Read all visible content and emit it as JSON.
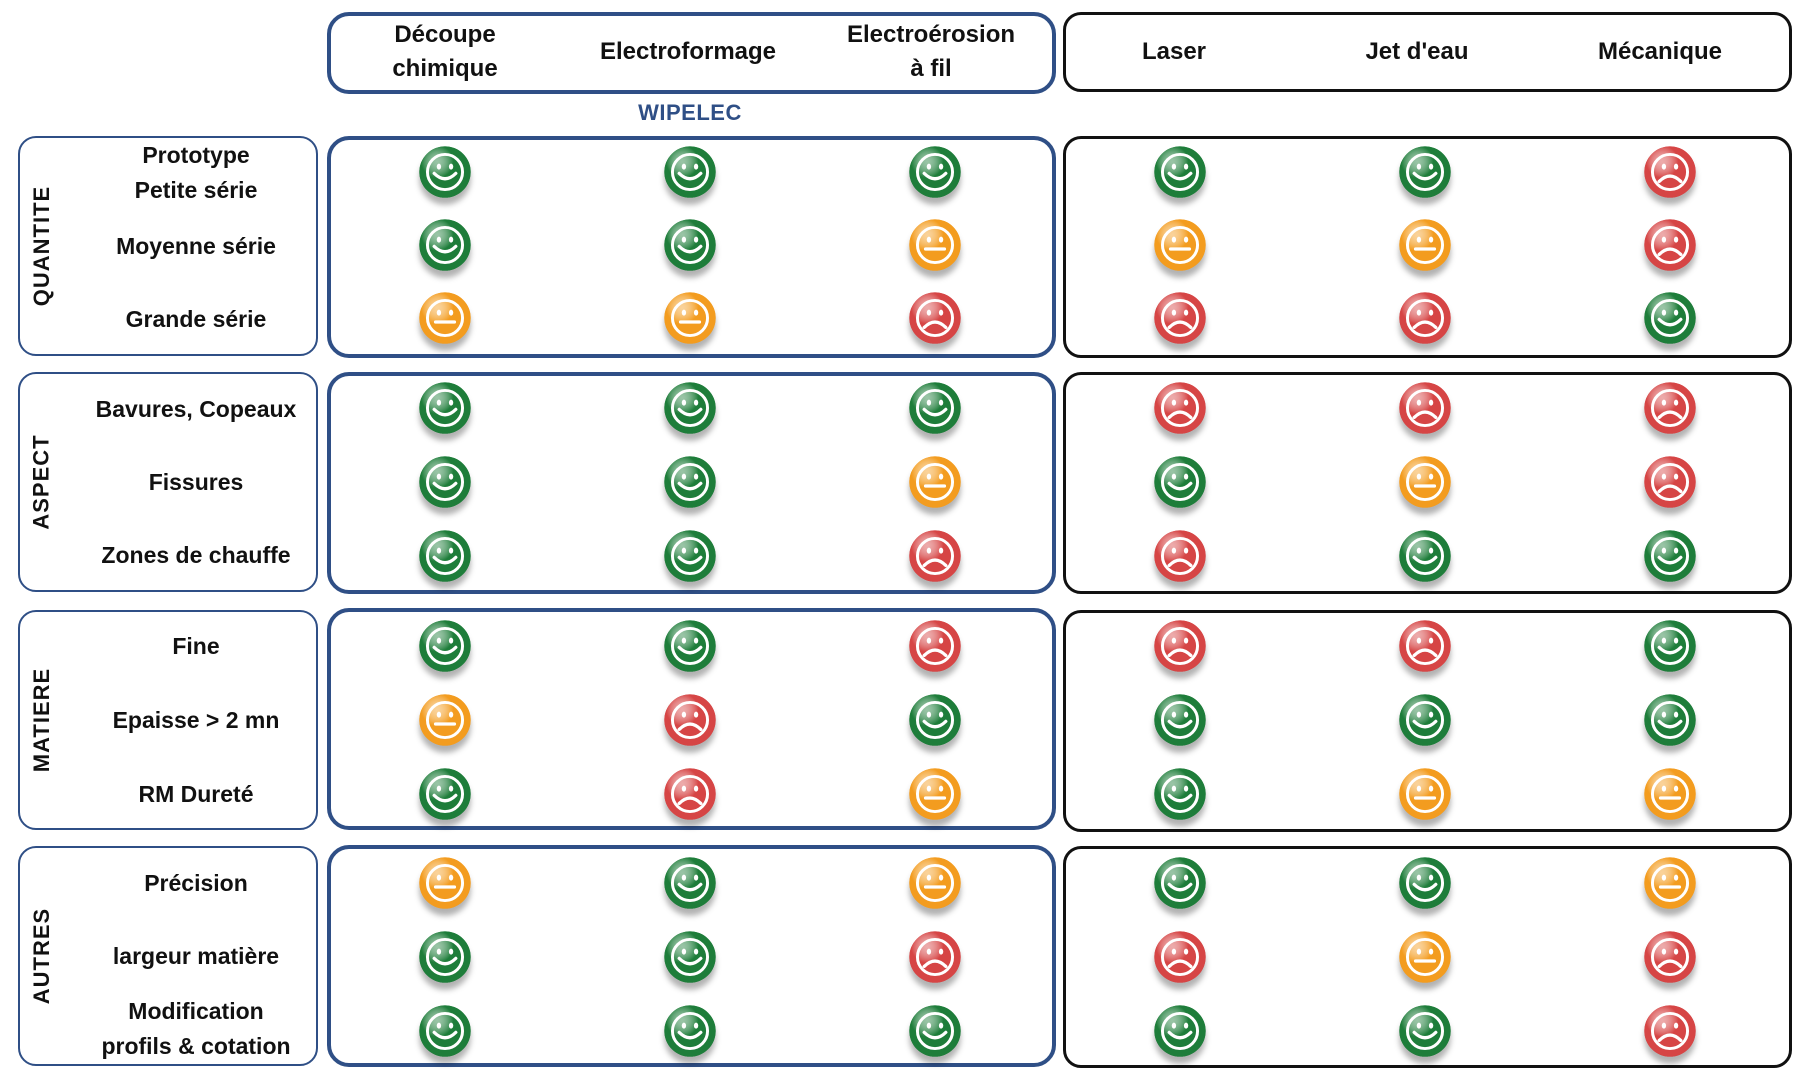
{
  "columns": {
    "group_wipelec": [
      {
        "label": "Découpe\nchimique"
      },
      {
        "label": "Electroformage"
      },
      {
        "label": "Electroérosion\nà fil"
      }
    ],
    "group_other": [
      {
        "label": "Laser"
      },
      {
        "label": "Jet d'eau"
      },
      {
        "label": "Mécanique"
      }
    ]
  },
  "brand_label": "WIPELEC",
  "legend_colors": {
    "good": "#1e7d3a",
    "medium": "#f39c1f",
    "bad": "#d64545"
  },
  "categories": [
    {
      "name": "QUANTITE",
      "rows": [
        {
          "label": "Prototype\nPetite série",
          "ratings": [
            "good",
            "good",
            "good",
            "good",
            "good",
            "bad"
          ]
        },
        {
          "label": "Moyenne série",
          "ratings": [
            "good",
            "good",
            "medium",
            "medium",
            "medium",
            "bad"
          ]
        },
        {
          "label": "Grande série",
          "ratings": [
            "medium",
            "medium",
            "bad",
            "bad",
            "bad",
            "good"
          ]
        }
      ]
    },
    {
      "name": "ASPECT",
      "rows": [
        {
          "label": "Bavures, Copeaux",
          "ratings": [
            "good",
            "good",
            "good",
            "bad",
            "bad",
            "bad"
          ]
        },
        {
          "label": "Fissures",
          "ratings": [
            "good",
            "good",
            "medium",
            "good",
            "medium",
            "bad"
          ]
        },
        {
          "label": "Zones de chauffe",
          "ratings": [
            "good",
            "good",
            "bad",
            "bad",
            "good",
            "good"
          ]
        }
      ]
    },
    {
      "name": "MATIERE",
      "rows": [
        {
          "label": "Fine",
          "ratings": [
            "good",
            "good",
            "bad",
            "bad",
            "bad",
            "good"
          ]
        },
        {
          "label": "Epaisse > 2 mn",
          "ratings": [
            "medium",
            "bad",
            "good",
            "good",
            "good",
            "good"
          ]
        },
        {
          "label": "RM Dureté",
          "ratings": [
            "good",
            "bad",
            "medium",
            "good",
            "medium",
            "medium"
          ]
        }
      ]
    },
    {
      "name": "AUTRES",
      "rows": [
        {
          "label": "Précision",
          "ratings": [
            "medium",
            "good",
            "medium",
            "good",
            "good",
            "medium"
          ]
        },
        {
          "label": "largeur matière",
          "ratings": [
            "good",
            "good",
            "bad",
            "bad",
            "medium",
            "bad"
          ]
        },
        {
          "label": "Modification\nprofils &  cotation",
          "ratings": [
            "good",
            "good",
            "good",
            "good",
            "good",
            "bad"
          ]
        }
      ]
    }
  ]
}
